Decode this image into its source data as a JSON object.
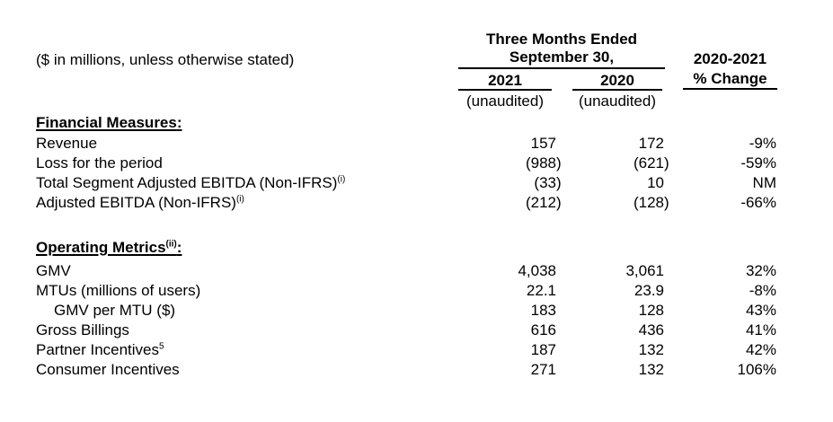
{
  "note": "($ in millions, unless otherwise stated)",
  "header": {
    "period_line1": "Three Months Ended",
    "period_line2": "September 30,",
    "year_2021": "2021",
    "year_2020": "2020",
    "unaudited_2021": "(unaudited)",
    "unaudited_2020": "(unaudited)",
    "change_line1": "2020-2021",
    "change_line2": "% Change"
  },
  "table": {
    "sections": [
      {
        "title": "Financial Measures",
        "title_sup": "",
        "title_suffix": ":",
        "rows": [
          {
            "label": "Revenue",
            "sup": "",
            "v2021": "157",
            "v2020": "172",
            "change": "-9%"
          },
          {
            "label": "Loss for the period",
            "sup": "",
            "v2021": "(988)",
            "v2020": "(621)",
            "change": "-59%"
          },
          {
            "label": "Total Segment Adjusted EBITDA (Non-IFRS)",
            "sup": "(i)",
            "v2021": "(33)",
            "v2020": "10",
            "change": "NM"
          },
          {
            "label": "Adjusted EBITDA (Non-IFRS)",
            "sup": "(i)",
            "v2021": "(212)",
            "v2020": "(128)",
            "change": "-66%"
          }
        ]
      },
      {
        "title": "Operating Metrics",
        "title_sup": "(ii)",
        "title_suffix": ":",
        "rows": [
          {
            "label": "GMV",
            "sup": "",
            "v2021": "4,038",
            "v2020": "3,061",
            "change": "32%"
          },
          {
            "label": "MTUs (millions of users)",
            "sup": "",
            "v2021": "22.1",
            "v2020": "23.9",
            "change": "-8%"
          },
          {
            "label": "GMV per MTU ($)",
            "sup": "",
            "v2021": "183",
            "v2020": "128",
            "change": "43%"
          },
          {
            "label": "Gross Billings",
            "sup": "",
            "v2021": "616",
            "v2020": "436",
            "change": "41%"
          },
          {
            "label": "Partner Incentives",
            "sup": "5",
            "v2021": "187",
            "v2020": "132",
            "change": "42%"
          },
          {
            "label": "Consumer Incentives",
            "sup": "",
            "v2021": "271",
            "v2020": "132",
            "change": "106%"
          }
        ]
      }
    ]
  }
}
